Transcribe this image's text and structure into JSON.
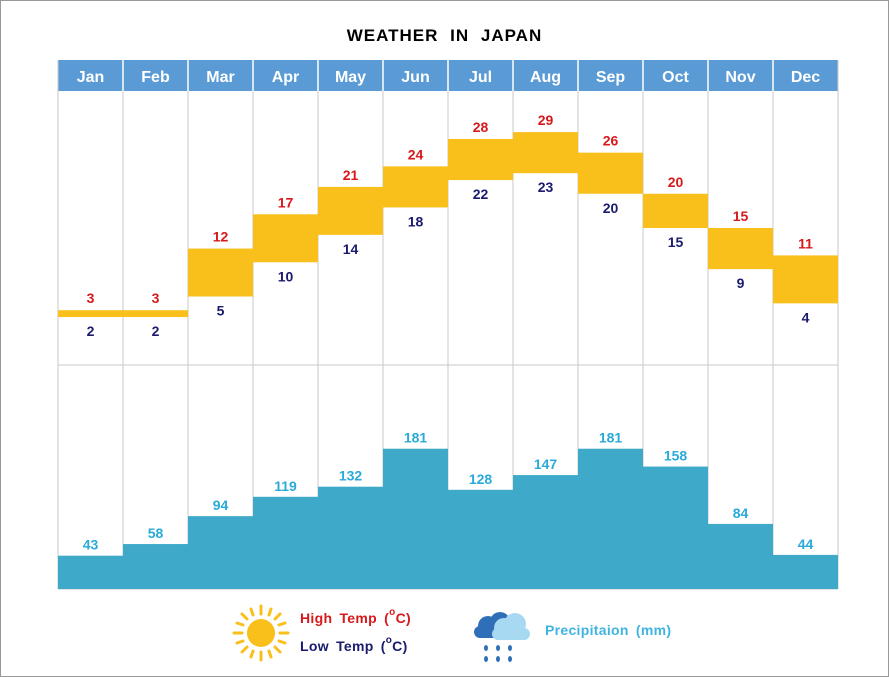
{
  "chart_data": {
    "type": "table",
    "title": "WEATHER  IN  JAPAN",
    "categories": [
      "Jan",
      "Feb",
      "Mar",
      "Apr",
      "May",
      "Jun",
      "Jul",
      "Aug",
      "Sep",
      "Oct",
      "Nov",
      "Dec"
    ],
    "series": [
      {
        "name": "High Temp (oC)",
        "values": [
          3,
          3,
          12,
          17,
          21,
          24,
          28,
          29,
          26,
          20,
          15,
          11
        ]
      },
      {
        "name": "Low Temp (oC)",
        "values": [
          2,
          2,
          5,
          10,
          14,
          18,
          22,
          23,
          20,
          15,
          9,
          4
        ]
      },
      {
        "name": "Precipitaion (mm)",
        "values": [
          43,
          58,
          94,
          119,
          132,
          181,
          128,
          147,
          181,
          158,
          84,
          44
        ]
      }
    ],
    "temp_range": [
      -5,
      35
    ],
    "precip_range": [
      0,
      200
    ]
  },
  "legend": {
    "high_label": "High  Temp  (",
    "low_label": "Low  Temp  (",
    "deg_sup": "o",
    "unit_suffix": "C)",
    "precip_label": "Precipitaion  (mm)"
  },
  "icons": {
    "sun": "sun-icon",
    "rain": "rain-cloud-icon"
  },
  "colors": {
    "header": "#5b9bd5",
    "temp_band": "#f9bf1a",
    "precip_bar": "#3fa9c9",
    "high": "#d7191c",
    "low": "#1a1a6e",
    "precip_text": "#2aaad8"
  }
}
